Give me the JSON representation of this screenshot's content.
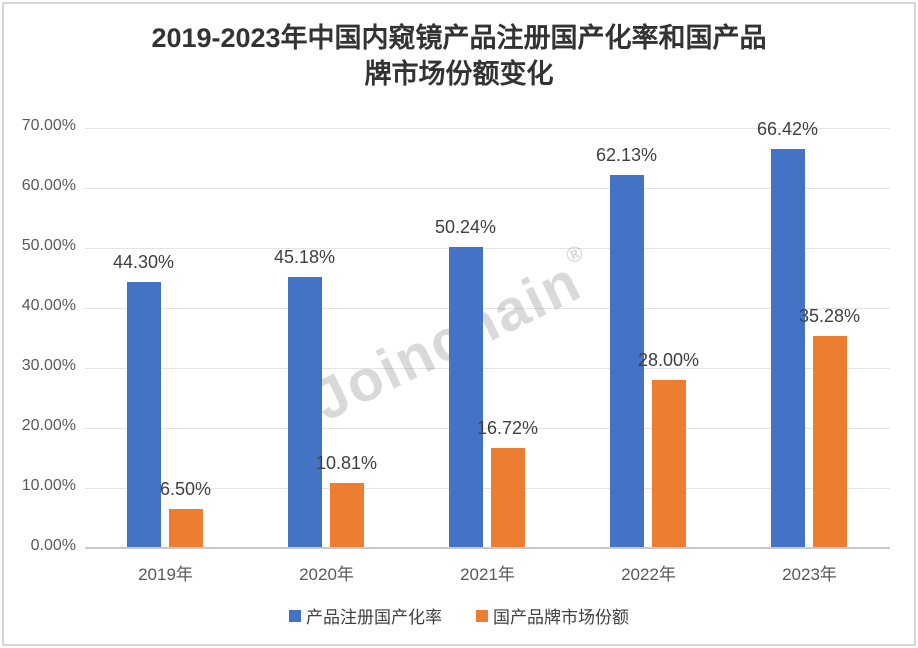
{
  "title": {
    "line1": "2019-2023年中国内窥镜产品注册国产化率和国产品",
    "line2": "牌市场份额变化"
  },
  "watermark": {
    "text": "Joinchain",
    "registered": "®"
  },
  "colors": {
    "series_blue": "#4472C4",
    "series_orange": "#ED7D31",
    "title_text": "#333333",
    "axis_text": "#595959",
    "label_text": "#404040",
    "gridline": "#e4e4e4",
    "baseline": "#c8c8c8",
    "frame_border": "#d6d6d6"
  },
  "chart_data": {
    "type": "bar",
    "title": "2019-2023年中国内窥镜产品注册国产化率和国产品牌市场份额变化",
    "categories": [
      "2019年",
      "2020年",
      "2021年",
      "2022年",
      "2023年"
    ],
    "series": [
      {
        "name": "产品注册国产化率",
        "color": "#4472C4",
        "values": [
          44.3,
          45.18,
          50.24,
          62.13,
          66.42
        ],
        "labels": [
          "44.30%",
          "45.18%",
          "50.24%",
          "62.13%",
          "66.42%"
        ]
      },
      {
        "name": "国产品牌市场份额",
        "color": "#ED7D31",
        "values": [
          6.5,
          10.81,
          16.72,
          28.0,
          35.28
        ],
        "labels": [
          "6.50%",
          "10.81%",
          "16.72%",
          "28.00%",
          "35.28%"
        ]
      }
    ],
    "yticks": [
      "70.00%",
      "60.00%",
      "50.00%",
      "40.00%",
      "30.00%",
      "20.00%",
      "10.00%",
      "0.00%"
    ],
    "ylim": [
      0,
      70
    ],
    "xlabel": "",
    "ylabel": "",
    "grid": true,
    "legend_position": "bottom"
  }
}
